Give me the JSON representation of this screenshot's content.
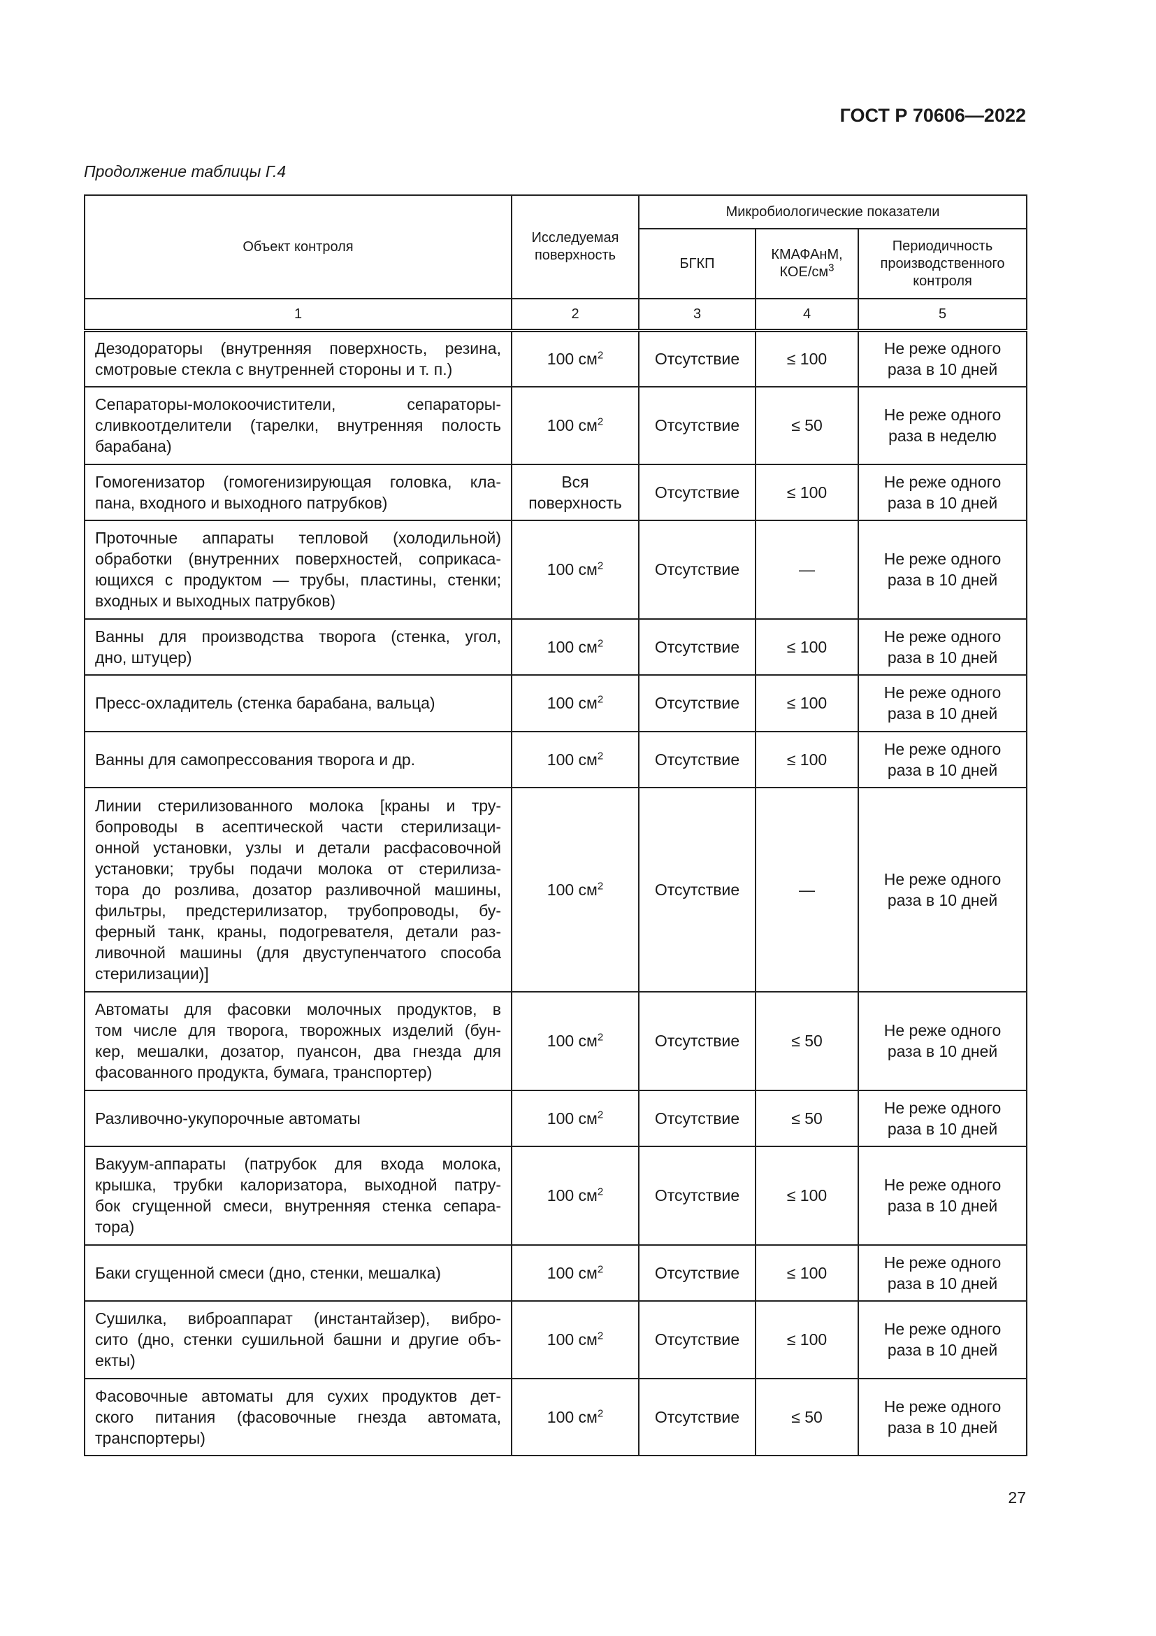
{
  "header": {
    "doc_id": "ГОСТ Р 70606—2022",
    "caption": "Продолжение таблицы Г.4",
    "page_number": "27"
  },
  "table": {
    "headers": {
      "object": "Объект контроля",
      "surface": "Исследуемая поверхность",
      "micro": "Микробиологические показатели",
      "bgkp": "БГКП",
      "kmafanm": "КМАФАнМ,",
      "kmafanm_unit": "КОЕ/см",
      "kmafanm_unit_sup": "3",
      "period": "Периодичность производственного контроля"
    },
    "column_numbers": [
      "1",
      "2",
      "3",
      "4",
      "5"
    ],
    "rows": [
      {
        "object": [
          "Дезодораторы (внутренняя поверхность, резина,",
          "смотровые стекла с внутренней стороны и т. п.)"
        ],
        "surface": "100 см",
        "sup": "2",
        "bgkp": "Отсутствие",
        "kmafanm": "≤ 100",
        "period": "Не реже одного раза в 10 дней"
      },
      {
        "object": [
          "Сепараторы-молокоочистители, сепараторы-",
          "сливкоотделители (тарелки, внутренняя полость",
          "барабана)"
        ],
        "surface": "100 см",
        "sup": "2",
        "bgkp": "Отсутствие",
        "kmafanm": "≤ 50",
        "period": "Не реже одного раза в неделю"
      },
      {
        "object": [
          "Гомогенизатор (гомогенизирующая головка, кла-",
          "пана, входного и выходного патрубков)"
        ],
        "surface": "Вся поверхность",
        "sup": "",
        "bgkp": "Отсутствие",
        "kmafanm": "≤ 100",
        "period": "Не реже одного раза в 10 дней"
      },
      {
        "object": [
          "Проточные аппараты тепловой (холодильной)",
          "обработки (внутренних поверхностей, соприкаса-",
          "ющихся с продуктом — трубы, пластины, стенки;",
          "входных и выходных патрубков)"
        ],
        "surface": "100 см",
        "sup": "2",
        "bgkp": "Отсутствие",
        "kmafanm": "—",
        "period": "Не реже одного раза в 10 дней"
      },
      {
        "object": [
          "Ванны для производства творога (стенка, угол,",
          "дно, штуцер)"
        ],
        "surface": "100 см",
        "sup": "2",
        "bgkp": "Отсутствие",
        "kmafanm": "≤ 100",
        "period": "Не реже одного раза в 10 дней"
      },
      {
        "object": [
          "Пресс-охладитель (стенка барабана, вальца)"
        ],
        "surface": "100 см",
        "sup": "2",
        "bgkp": "Отсутствие",
        "kmafanm": "≤ 100",
        "period": "Не реже одного раза в 10 дней"
      },
      {
        "object": [
          "Ванны для самопрессования творога и др."
        ],
        "surface": "100 см",
        "sup": "2",
        "bgkp": "Отсутствие",
        "kmafanm": "≤ 100",
        "period": "Не реже одного раза в 10 дней"
      },
      {
        "object": [
          "Линии стерилизованного молока [краны и тру-",
          "бопроводы в асептической части стерилизаци-",
          "онной установки, узлы и детали расфасовочной",
          "установки; трубы подачи молока от стерилиза-",
          "тора до розлива, дозатор разливочной машины,",
          "фильтры, предстерилизатор, трубопроводы, бу-",
          "ферный танк, краны, подогревателя, детали раз-",
          "ливочной машины (для двуступенчатого способа",
          "стерилизации)]"
        ],
        "surface": "100 см",
        "sup": "2",
        "bgkp": "Отсутствие",
        "kmafanm": "—",
        "period": "Не реже одного раза в 10 дней"
      },
      {
        "object": [
          "Автоматы для фасовки молочных продуктов, в",
          "том числе для творога, творожных изделий (бун-",
          "кер, мешалки, дозатор, пуансон, два гнезда для",
          "фасованного продукта, бумага, транспортер)"
        ],
        "surface": "100 см",
        "sup": "2",
        "bgkp": "Отсутствие",
        "kmafanm": "≤ 50",
        "period": "Не реже одного раза в 10 дней"
      },
      {
        "object": [
          "Разливочно-укупорочные автоматы"
        ],
        "surface": "100 см",
        "sup": "2",
        "bgkp": "Отсутствие",
        "kmafanm": "≤ 50",
        "period": "Не реже одного раза в 10 дней"
      },
      {
        "object": [
          "Вакуум-аппараты (патрубок для входа молока,",
          "крышка, трубки калоризатора, выходной патру-",
          "бок сгущенной смеси, внутренняя стенка сепара-",
          "тора)"
        ],
        "surface": "100 см",
        "sup": "2",
        "bgkp": "Отсутствие",
        "kmafanm": "≤ 100",
        "period": "Не реже одного раза в 10 дней"
      },
      {
        "object": [
          "Баки сгущенной смеси (дно, стенки, мешалка)"
        ],
        "surface": "100 см",
        "sup": "2",
        "bgkp": "Отсутствие",
        "kmafanm": "≤ 100",
        "period": "Не реже одного раза в 10 дней"
      },
      {
        "object": [
          "Сушилка, виброаппарат (инстантайзер), вибро-",
          "сито (дно, стенки сушильной башни и другие объ-",
          "екты)"
        ],
        "surface": "100 см",
        "sup": "2",
        "bgkp": "Отсутствие",
        "kmafanm": "≤ 100",
        "period": "Не реже одного раза в 10 дней"
      },
      {
        "object": [
          "Фасовочные автоматы для сухих продуктов дет-",
          "ского питания (фасовочные гнезда автомата,",
          "транспортеры)"
        ],
        "surface": "100 см",
        "sup": "2",
        "bgkp": "Отсутствие",
        "kmafanm": "≤ 50",
        "period": "Не реже одного раза в 10 дней"
      }
    ]
  }
}
